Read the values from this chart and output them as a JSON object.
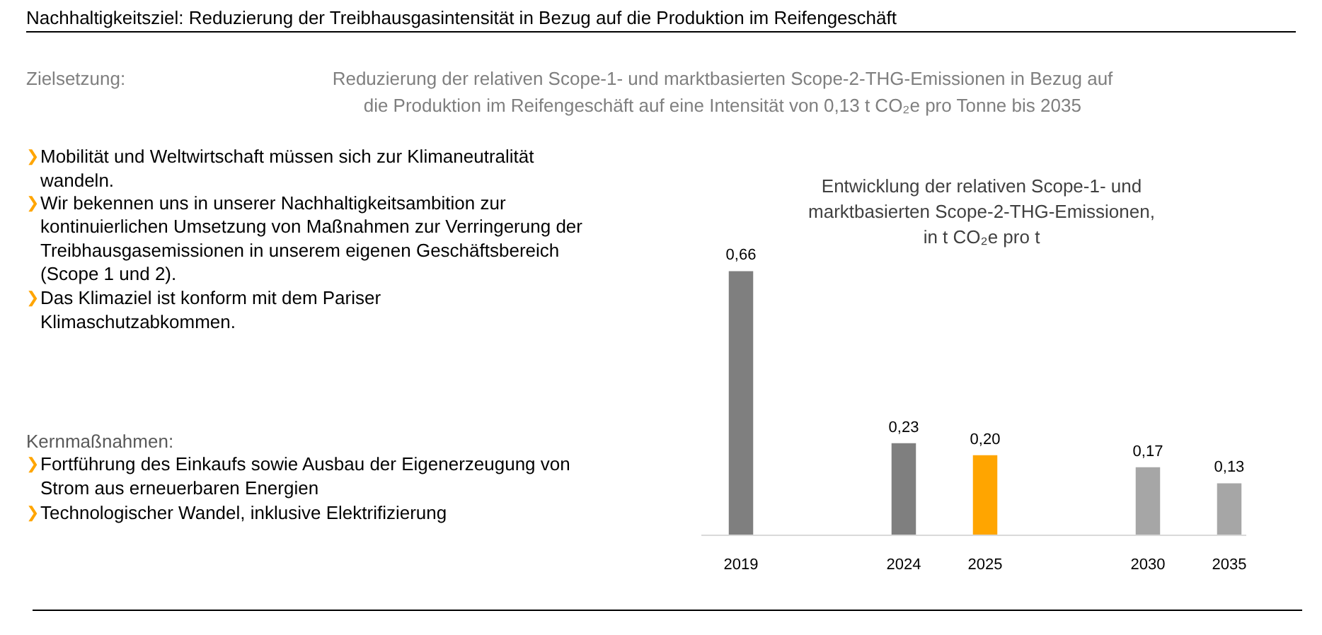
{
  "chart_data": {
    "type": "bar",
    "title": "Nachhaltigkeitsziel: Reduzierung der Treibhausgasintensität in Bezug auf die Produktion im Reifengeschäft",
    "subtitle": "Entwicklung der relativen Scope-1- und\nmarktbasierten Scope-2-THG-Emissionen,\nin t CO₂e pro t",
    "annotations": [
      "Zielsetzung:",
      "Reduzierung der relativen Scope-1- und marktbasierten Scope-2-THG-Emissionen in Bezug auf\ndie Produktion im Reifengeschäft auf eine Intensität von 0,13 t CO₂e pro Tonne bis 2035",
      "❯Mobilität und Weltwirtschaft müssen sich zur Klimaneutralität\nwandeln.",
      "❯Wir bekennen uns in unserer Nachhaltigkeitsambition zur\nkontinuierlichen Umsetzung von Maßnahmen zur Verringerung der\nTreibhausgasemissionen in unserem eigenen Geschäftsbereich\n(Scope 1 und 2).",
      "❯Das Klimaziel ist konform mit dem Pariser\nKlimaschutzabkommen.",
      "Kernmaßnahmen:",
      "❯Fortführung des Einkaufs sowie Ausbau der Eigenerzeugung von\nStrom aus erneuerbaren Energien",
      "❯Technologischer Wandel, inklusive Elektrifizierung"
    ],
    "categories": [
      "2019",
      null,
      "2024",
      "2025",
      null,
      "2030",
      "2035"
    ],
    "values": [
      0.66,
      null,
      0.23,
      0.2,
      null,
      0.17,
      0.13
    ],
    "colors": [
      "#7f7f7f",
      "#7f7f7f",
      "#7f7f7f",
      "#ffa500",
      "#a6a6a6",
      "#a6a6a6",
      "#a6a6a6"
    ],
    "value_labels": [
      "0,66",
      null,
      "0,23",
      "0,20",
      null,
      "0,17",
      "0,13"
    ],
    "grid": false,
    "tick_labels": "x"
  }
}
